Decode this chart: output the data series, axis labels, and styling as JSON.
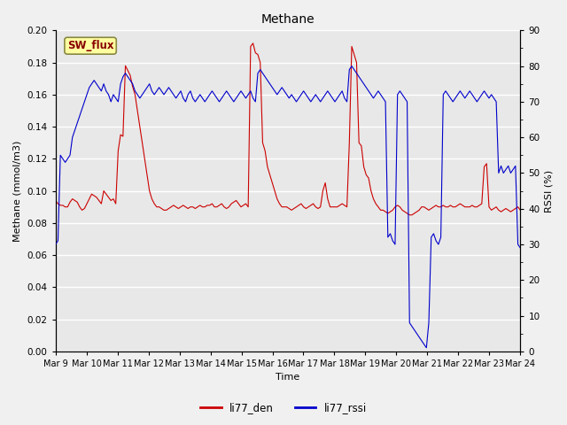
{
  "title": "Methane",
  "ylabel_left": "Methane (mmol/m3)",
  "ylabel_right": "RSSI (%)",
  "xlabel": "Time",
  "ylim_left": [
    0.0,
    0.2
  ],
  "ylim_right": [
    0,
    90
  ],
  "yticks_left": [
    0.0,
    0.02,
    0.04,
    0.06,
    0.08,
    0.1,
    0.12,
    0.14,
    0.16,
    0.18,
    0.2
  ],
  "yticks_right": [
    0,
    10,
    20,
    30,
    40,
    50,
    60,
    70,
    80,
    90
  ],
  "color_den": "#cc0000",
  "color_rssi": "#0000cc",
  "sw_flux_label": "SW_flux",
  "sw_flux_bg": "#ffffa0",
  "sw_flux_border": "#888844",
  "legend_den": "li77_den",
  "legend_rssi": "li77_rssi",
  "bg_color": "#e8e8e8",
  "fig_bg_color": "#f0f0f0",
  "grid_color": "#ffffff",
  "xtick_labels": [
    "Mar 9",
    "Mar 10",
    "Mar 11",
    "Mar 12",
    "Mar 13",
    "Mar 14",
    "Mar 15",
    "Mar 16",
    "Mar 17",
    "Mar 18",
    "Mar 19",
    "Mar 20",
    "Mar 21",
    "Mar 22",
    "Mar 23",
    "Mar 24"
  ],
  "den_data": [
    0.094,
    0.092,
    0.091,
    0.091,
    0.09,
    0.09,
    0.093,
    0.095,
    0.094,
    0.093,
    0.09,
    0.088,
    0.089,
    0.092,
    0.095,
    0.098,
    0.097,
    0.096,
    0.094,
    0.092,
    0.1,
    0.098,
    0.096,
    0.094,
    0.095,
    0.092,
    0.125,
    0.135,
    0.134,
    0.178,
    0.175,
    0.172,
    0.165,
    0.16,
    0.15,
    0.14,
    0.13,
    0.12,
    0.11,
    0.1,
    0.095,
    0.092,
    0.09,
    0.09,
    0.089,
    0.088,
    0.088,
    0.089,
    0.09,
    0.091,
    0.09,
    0.089,
    0.09,
    0.091,
    0.09,
    0.089,
    0.09,
    0.09,
    0.089,
    0.09,
    0.091,
    0.09,
    0.09,
    0.091,
    0.091,
    0.092,
    0.09,
    0.09,
    0.091,
    0.092,
    0.09,
    0.089,
    0.09,
    0.092,
    0.093,
    0.094,
    0.092,
    0.09,
    0.091,
    0.092,
    0.09,
    0.19,
    0.192,
    0.186,
    0.185,
    0.18,
    0.13,
    0.125,
    0.115,
    0.11,
    0.105,
    0.1,
    0.095,
    0.092,
    0.09,
    0.09,
    0.09,
    0.089,
    0.088,
    0.089,
    0.09,
    0.091,
    0.092,
    0.09,
    0.089,
    0.09,
    0.091,
    0.092,
    0.09,
    0.089,
    0.09,
    0.1,
    0.105,
    0.095,
    0.09,
    0.09,
    0.09,
    0.09,
    0.091,
    0.092,
    0.091,
    0.09,
    0.13,
    0.19,
    0.185,
    0.18,
    0.13,
    0.128,
    0.115,
    0.11,
    0.108,
    0.1,
    0.095,
    0.092,
    0.09,
    0.088,
    0.088,
    0.087,
    0.086,
    0.087,
    0.088,
    0.09,
    0.091,
    0.09,
    0.088,
    0.087,
    0.086,
    0.085,
    0.085,
    0.086,
    0.087,
    0.088,
    0.09,
    0.09,
    0.089,
    0.088,
    0.089,
    0.09,
    0.091,
    0.09,
    0.09,
    0.091,
    0.09,
    0.09,
    0.091,
    0.09,
    0.09,
    0.091,
    0.092,
    0.091,
    0.09,
    0.09,
    0.09,
    0.091,
    0.09,
    0.09,
    0.091,
    0.092,
    0.115,
    0.117,
    0.09,
    0.088,
    0.089,
    0.09,
    0.088,
    0.087,
    0.088,
    0.089,
    0.088,
    0.087,
    0.088,
    0.089,
    0.09,
    0.088
  ],
  "rssi_data": [
    30,
    31,
    55,
    54,
    53,
    54,
    55,
    60,
    62,
    64,
    66,
    68,
    70,
    72,
    74,
    75,
    76,
    75,
    74,
    73,
    75,
    73,
    72,
    70,
    72,
    71,
    70,
    75,
    77,
    78,
    77,
    76,
    75,
    73,
    72,
    71,
    72,
    73,
    74,
    75,
    73,
    72,
    73,
    74,
    73,
    72,
    73,
    74,
    73,
    72,
    71,
    72,
    73,
    71,
    70,
    72,
    73,
    71,
    70,
    71,
    72,
    71,
    70,
    71,
    72,
    73,
    72,
    71,
    70,
    71,
    72,
    73,
    72,
    71,
    70,
    71,
    72,
    73,
    72,
    71,
    72,
    73,
    71,
    70,
    78,
    79,
    78,
    77,
    76,
    75,
    74,
    73,
    72,
    73,
    74,
    73,
    72,
    71,
    72,
    71,
    70,
    71,
    72,
    73,
    72,
    71,
    70,
    71,
    72,
    71,
    70,
    71,
    72,
    73,
    72,
    71,
    70,
    71,
    72,
    73,
    71,
    70,
    79,
    80,
    79,
    78,
    77,
    76,
    75,
    74,
    73,
    72,
    71,
    72,
    73,
    72,
    71,
    70,
    32,
    33,
    31,
    30,
    72,
    73,
    72,
    71,
    70,
    8,
    7,
    6,
    5,
    4,
    3,
    2,
    1,
    8,
    32,
    33,
    31,
    30,
    32,
    72,
    73,
    72,
    71,
    70,
    71,
    72,
    73,
    72,
    71,
    72,
    73,
    72,
    71,
    70,
    71,
    72,
    73,
    72,
    71,
    72,
    71,
    70,
    50,
    52,
    50,
    51,
    52,
    50,
    51,
    52,
    30,
    29
  ]
}
